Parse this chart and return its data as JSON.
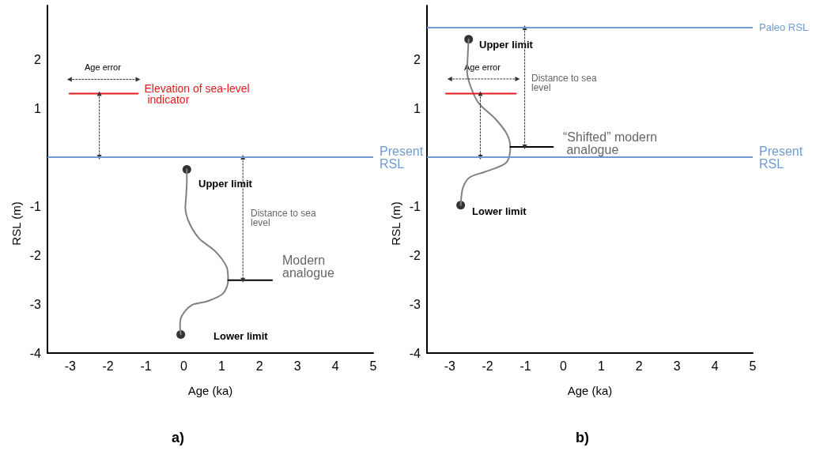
{
  "chart_data": [
    {
      "type": "line",
      "title": "a)",
      "xlabel": "Age (ka)",
      "ylabel": "RSL (m)",
      "xlim": [
        -3.6,
        5
      ],
      "xticks": [
        -3,
        -2,
        -1,
        0,
        1,
        2,
        3,
        4,
        5
      ],
      "ylim": [
        -4,
        3.1
      ],
      "yticks": [
        -4,
        -3,
        -2,
        -1,
        1,
        2
      ],
      "series": [
        {
          "color": "#808080",
          "marker": "none",
          "x": [
            0.08,
            0.08,
            0.06,
            0.04,
            0.15,
            0.42,
            0.83,
            1.13,
            1.17,
            1.04,
            0.63,
            0.21,
            -0.06,
            -0.1,
            -0.08
          ],
          "values": [
            -0.25,
            -0.49,
            -0.81,
            -1.03,
            -1.35,
            -1.67,
            -1.92,
            -2.24,
            -2.51,
            -2.78,
            -2.94,
            -3.02,
            -3.25,
            -3.46,
            -3.62
          ]
        },
        {
          "type": "scatter",
          "color": "#000000",
          "marker": "circle",
          "x": [
            0.08,
            -0.08
          ],
          "values": [
            -0.25,
            -3.62
          ]
        },
        {
          "name": "Elevation of sea-level indicator",
          "color": "#e31a1c",
          "marker": "none",
          "x": [
            -3.02,
            -1.21
          ],
          "values": [
            1.3,
            1.3
          ]
        },
        {
          "color": "#000000",
          "marker": "none",
          "x": [
            1.17,
            2.33
          ],
          "values": [
            -2.51,
            -2.51
          ]
        },
        {
          "color": "#333333",
          "marker": "triangle",
          "line_style": "dotted",
          "x": [
            -3.02,
            -1.21
          ],
          "values": [
            1.59,
            1.59
          ]
        },
        {
          "color": "#333333",
          "marker": "triangle",
          "line_style": "dotted",
          "x": [
            -2.23,
            -2.23
          ],
          "values": [
            1.3,
            0
          ]
        },
        {
          "color": "#333333",
          "marker": "triangle",
          "line_style": "dotted",
          "x": [
            1.56,
            1.56
          ],
          "values": [
            0,
            -2.51
          ]
        }
      ],
      "ref_lines": [
        {
          "axis": "y",
          "value": 0,
          "label": "Present RSL",
          "color": "#6f9bd1"
        }
      ],
      "annotations": [
        "Age error",
        "Upper limit",
        "Distance to sea level",
        "Modern analogue",
        "Lower limit"
      ]
    },
    {
      "type": "line",
      "title": "b)",
      "xlabel": "Age (ka)",
      "ylabel": "RSL (m)",
      "xlim": [
        -3.6,
        5
      ],
      "xticks": [
        -3,
        -2,
        -1,
        0,
        1,
        2,
        3,
        4,
        5
      ],
      "ylim": [
        -4,
        3.1
      ],
      "yticks": [
        -4,
        -3,
        -2,
        -1,
        1,
        2
      ],
      "series": [
        {
          "color": "#808080",
          "marker": "none",
          "x": [
            -2.5,
            -2.52,
            -2.54,
            -2.44,
            -2.23,
            -1.79,
            -1.48,
            -1.4,
            -1.51,
            -2.08,
            -2.47,
            -2.65,
            -2.71
          ],
          "values": [
            2.41,
            2.13,
            1.75,
            1.43,
            1.1,
            0.78,
            0.46,
            0.19,
            -0.11,
            -0.3,
            -0.41,
            -0.62,
            -0.98
          ]
        },
        {
          "type": "scatter",
          "color": "#000000",
          "marker": "circle",
          "x": [
            -2.5,
            -2.71
          ],
          "values": [
            2.41,
            -0.98
          ]
        },
        {
          "color": "#e31a1c",
          "marker": "none",
          "x": [
            -3.1,
            -1.25
          ],
          "values": [
            1.3,
            1.3
          ]
        },
        {
          "color": "#000000",
          "marker": "none",
          "x": [
            -1.4,
            -0.27
          ],
          "values": [
            0.21,
            0.21
          ]
        },
        {
          "color": "#333333",
          "marker": "triangle",
          "line_style": "dotted",
          "x": [
            -3.0,
            -1.21
          ],
          "values": [
            1.6,
            1.6
          ]
        },
        {
          "color": "#333333",
          "marker": "triangle",
          "line_style": "dotted",
          "x": [
            -2.19,
            -2.19
          ],
          "values": [
            1.3,
            0
          ]
        },
        {
          "color": "#333333",
          "marker": "triangle",
          "line_style": "dotted",
          "x": [
            -1.02,
            -1.02
          ],
          "values": [
            2.65,
            0.21
          ]
        }
      ],
      "ref_lines": [
        {
          "axis": "y",
          "value": 2.65,
          "label": "Paleo RSL",
          "color": "#6f9bd1"
        },
        {
          "axis": "y",
          "value": 0,
          "label": "Present RSL",
          "color": "#6f9bd1"
        }
      ],
      "annotations": [
        "Upper limit",
        "Age error",
        "Distance to sea level",
        "“Shifted” modern analogue",
        "Lower limit"
      ]
    }
  ]
}
